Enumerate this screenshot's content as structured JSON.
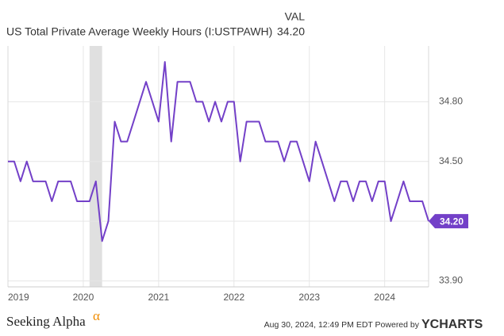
{
  "chart_data": {
    "type": "line",
    "legend_header": "VAL",
    "x": [
      2019,
      2019.083,
      2019.167,
      2019.25,
      2019.333,
      2019.417,
      2019.5,
      2019.583,
      2019.667,
      2019.75,
      2019.833,
      2019.917,
      2020,
      2020.083,
      2020.167,
      2020.25,
      2020.333,
      2020.417,
      2020.5,
      2020.583,
      2020.667,
      2020.75,
      2020.833,
      2020.917,
      2021,
      2021.083,
      2021.167,
      2021.25,
      2021.333,
      2021.417,
      2021.5,
      2021.583,
      2021.667,
      2021.75,
      2021.833,
      2021.917,
      2022,
      2022.083,
      2022.167,
      2022.25,
      2022.333,
      2022.417,
      2022.5,
      2022.583,
      2022.667,
      2022.75,
      2022.833,
      2022.917,
      2023,
      2023.083,
      2023.167,
      2023.25,
      2023.333,
      2023.417,
      2023.5,
      2023.583,
      2023.667,
      2023.75,
      2023.833,
      2023.917,
      2024,
      2024.083,
      2024.167,
      2024.25,
      2024.333,
      2024.417,
      2024.5,
      2024.583
    ],
    "series": [
      {
        "name": "US Total Private Average Weekly Hours (I:USTPAWH)",
        "color": "#7340c8",
        "values": [
          34.5,
          34.5,
          34.4,
          34.5,
          34.4,
          34.4,
          34.4,
          34.3,
          34.4,
          34.4,
          34.4,
          34.3,
          34.3,
          34.3,
          34.4,
          34.1,
          34.2,
          34.7,
          34.6,
          34.6,
          34.7,
          34.8,
          34.9,
          34.8,
          34.7,
          35.0,
          34.6,
          34.9,
          34.9,
          34.9,
          34.8,
          34.8,
          34.7,
          34.8,
          34.7,
          34.8,
          34.8,
          34.5,
          34.7,
          34.7,
          34.7,
          34.6,
          34.6,
          34.6,
          34.5,
          34.6,
          34.6,
          34.5,
          34.4,
          34.6,
          34.5,
          34.4,
          34.3,
          34.4,
          34.4,
          34.3,
          34.4,
          34.4,
          34.3,
          34.4,
          34.4,
          34.2,
          34.3,
          34.4,
          34.3,
          34.3,
          34.3,
          34.2
        ],
        "value_labels": [
          null,
          null,
          null,
          null,
          null,
          null,
          null,
          null,
          null,
          null,
          null,
          null,
          null,
          null,
          null,
          null,
          null,
          null,
          null,
          null,
          null,
          null,
          null,
          null,
          null,
          null,
          null,
          null,
          null,
          null,
          null,
          null,
          null,
          null,
          null,
          null,
          null,
          null,
          null,
          null,
          null,
          null,
          null,
          null,
          null,
          null,
          null,
          null,
          null,
          null,
          null,
          null,
          null,
          null,
          null,
          null,
          null,
          null,
          null,
          null,
          null,
          null,
          null,
          null,
          null,
          null,
          null,
          "34.20"
        ]
      }
    ],
    "shaded_region": [
      2020.083,
      2020.25
    ],
    "xlim": [
      2019,
      2024.583
    ],
    "xticks": [
      2019,
      2020,
      2021,
      2022,
      2023,
      2024
    ],
    "ylim": [
      33.87,
      35.08
    ],
    "yticks": [
      {
        "value": 33.9,
        "label": "33.90"
      },
      {
        "value": 34.2,
        "label": "34.20"
      },
      {
        "value": 34.5,
        "label": "34.50"
      },
      {
        "value": 34.8,
        "label": "34.80"
      }
    ],
    "grid": true
  },
  "footer": {
    "brand": "Seeking Alpha",
    "brand_mark": "α",
    "timestamp": "Aug 30, 2024, 12:49 PM EDT Powered by",
    "logo": "YCHARTS"
  }
}
